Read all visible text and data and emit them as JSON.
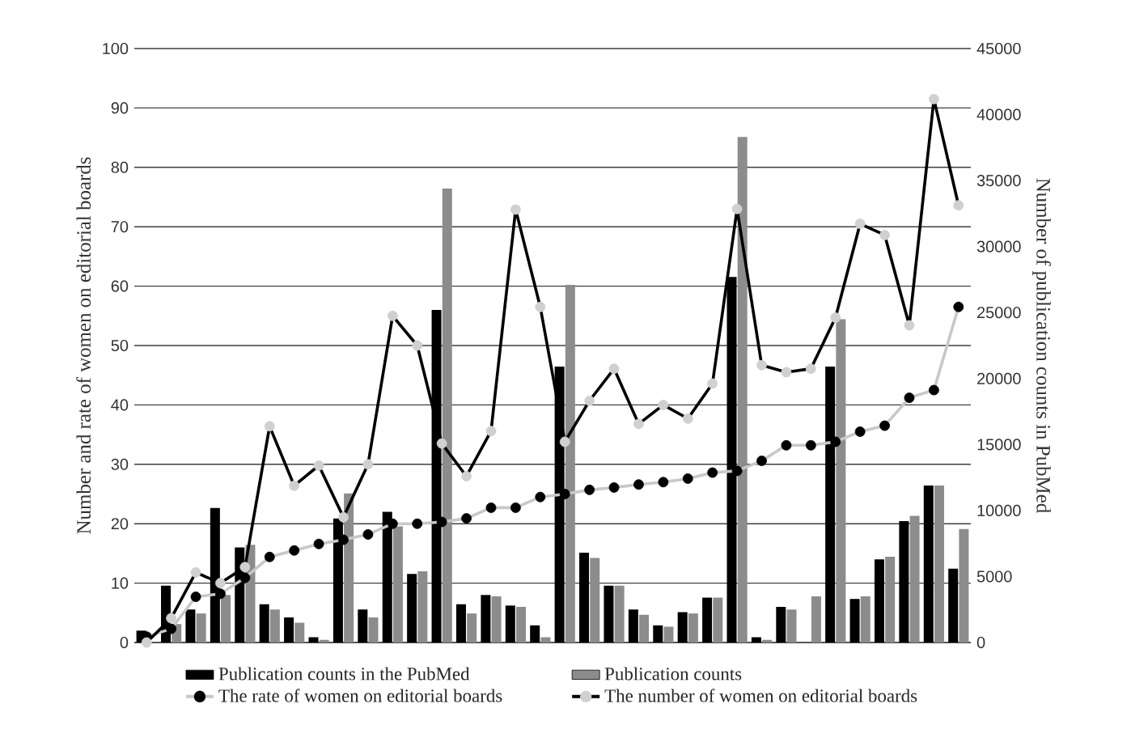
{
  "chart_data": {
    "type": "bar",
    "categories": [
      null,
      null,
      null,
      null,
      null,
      null,
      null,
      null,
      null,
      null,
      null,
      null,
      null,
      null,
      null,
      null,
      null,
      null,
      null,
      null,
      null,
      null,
      null,
      null,
      null,
      null,
      null,
      null,
      null,
      null,
      null,
      null,
      null,
      null
    ],
    "ylabel": "Number and rate of women on editorial boards",
    "y2label": "Number of publication counts in PubMed",
    "ylim": [
      0,
      100
    ],
    "yticks": [
      0,
      10,
      20,
      30,
      40,
      50,
      60,
      70,
      80,
      90,
      100
    ],
    "y2lim": [
      0,
      45000
    ],
    "y2ticks": [
      0,
      5000,
      10000,
      15000,
      20000,
      25000,
      30000,
      35000,
      40000,
      45000
    ],
    "grid": "y",
    "legend": "bottom",
    "marker": "circle",
    "series": [
      {
        "name": "Publication counts in the PubMed",
        "axis": "y2",
        "color": "#000000",
        "values": [
          900,
          4300,
          2500,
          10200,
          7200,
          2900,
          1900,
          400,
          9400,
          2500,
          9900,
          5200,
          25200,
          2900,
          3600,
          2800,
          1300,
          20900,
          6800,
          4300,
          2500,
          1300,
          2300,
          3400,
          27700,
          400,
          2700,
          0,
          20900,
          3300,
          6300,
          9200,
          11900,
          5600
        ]
      },
      {
        "name": "Publication counts",
        "axis": "y2",
        "color": "#8c8c8c",
        "values": [
          null,
          1400,
          2200,
          3600,
          7400,
          2500,
          1500,
          200,
          11300,
          1900,
          8800,
          5400,
          34400,
          2200,
          3500,
          2700,
          400,
          27100,
          6400,
          4300,
          2100,
          1200,
          2200,
          3400,
          38300,
          200,
          2500,
          3500,
          24500,
          3500,
          6500,
          9600,
          11900,
          8600
        ]
      },
      {
        "name": "The rate of women on editorial boards",
        "type": "line",
        "color": "#c8c8c8",
        "colors": [
          "#000000",
          "#000000",
          "#000000",
          "#000000",
          "#000000",
          "#000000",
          "#000000",
          "#000000",
          "#000000",
          "#000000",
          "#000000",
          "#000000",
          "#000000",
          "#000000",
          "#000000",
          "#000000",
          "#000000",
          "#000000",
          "#000000",
          "#000000",
          "#000000",
          "#000000",
          "#000000",
          "#000000",
          "#000000",
          "#000000",
          "#000000",
          "#000000",
          "#000000",
          "#000000",
          "#000000",
          "#000000",
          "#000000",
          "#000000"
        ],
        "values": [
          1,
          2.3,
          7.7,
          8.2,
          10.9,
          14.4,
          15.5,
          16.6,
          17.3,
          18.2,
          20,
          20,
          20.3,
          20.9,
          22.7,
          22.7,
          24.5,
          25,
          25.7,
          26.1,
          26.6,
          27,
          27.6,
          28.6,
          28.9,
          30.6,
          33.2,
          33.2,
          33.8,
          35.5,
          36.5,
          41.2,
          42.5,
          56.5
        ]
      },
      {
        "name": "The number of women on editorial boards",
        "type": "line",
        "color": "#000000",
        "colors": [
          "#d0d0d0",
          "#d0d0d0",
          "#d0d0d0",
          "#d0d0d0",
          "#d0d0d0",
          "#d0d0d0",
          "#d0d0d0",
          "#d0d0d0",
          "#d0d0d0",
          "#d0d0d0",
          "#d0d0d0",
          "#d0d0d0",
          "#d0d0d0",
          "#d0d0d0",
          "#d0d0d0",
          "#d0d0d0",
          "#d0d0d0",
          "#d0d0d0",
          "#d0d0d0",
          "#d0d0d0",
          "#d0d0d0",
          "#d0d0d0",
          "#d0d0d0",
          "#d0d0d0",
          "#d0d0d0",
          "#d0d0d0",
          "#d0d0d0",
          "#d0d0d0",
          "#d0d0d0",
          "#d0d0d0",
          "#d0d0d0",
          "#d0d0d0",
          "#d0d0d0",
          "#d0d0d0"
        ],
        "values": [
          0,
          4.1,
          11.8,
          10,
          12.7,
          36.4,
          26.4,
          29.8,
          21.1,
          30,
          55,
          50,
          33.5,
          28,
          35.6,
          72.9,
          56.5,
          33.8,
          40.7,
          46.1,
          36.8,
          40,
          37.7,
          43.6,
          73,
          46.7,
          45.5,
          46.1,
          54.7,
          70.5,
          68.6,
          53.4,
          91.5,
          73.6
        ]
      }
    ]
  }
}
